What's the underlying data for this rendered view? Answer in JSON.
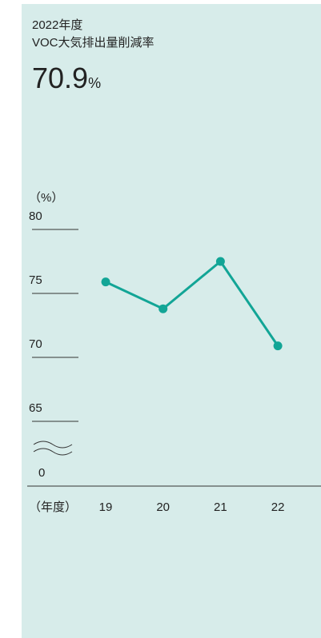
{
  "chart_data": {
    "type": "line",
    "subtitle": "2022年度",
    "title": "VOC大気排出量削減率",
    "headline_value": 70.9,
    "headline_unit": "%",
    "y_axis_label": "（%）",
    "x_axis_label": "（年度）",
    "categories": [
      "19",
      "20",
      "21",
      "22"
    ],
    "series": [
      {
        "name": "VOC大気排出量削減率",
        "color": "#12a596",
        "values": [
          75.9,
          73.8,
          77.5,
          70.9
        ]
      }
    ],
    "ylim": [
      65,
      80
    ],
    "yticks": [
      0,
      65,
      70,
      75,
      80
    ],
    "axis_break": true,
    "grid": false,
    "legend": false
  }
}
